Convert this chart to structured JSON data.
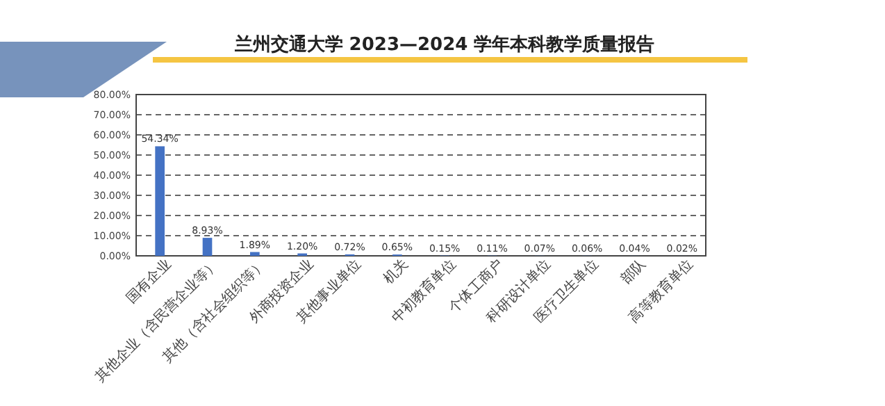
{
  "chart_data": {
    "type": "bar",
    "title": "兰州交通大学 2023—2024 学年本科教学质量报告",
    "categories": [
      "国有企业",
      "其他企业（含民营企业等）",
      "其他（含社会组织等）",
      "外商投资企业",
      "其他事业单位",
      "机关",
      "中初教育单位",
      "个体工商户",
      "科研设计单位",
      "医疗卫生单位",
      "部队",
      "高等教育单位"
    ],
    "values": [
      54.34,
      8.93,
      1.89,
      1.2,
      0.72,
      0.65,
      0.15,
      0.11,
      0.07,
      0.06,
      0.04,
      0.02
    ],
    "value_labels": [
      "54.34%",
      "8.93%",
      "1.89%",
      "1.20%",
      "0.72%",
      "0.65%",
      "0.15%",
      "0.11%",
      "0.07%",
      "0.06%",
      "0.04%",
      "0.02%"
    ],
    "color": "#4472c4",
    "ylim": [
      0,
      80
    ],
    "yticks": [
      {
        "value": 0,
        "label": "0.00%"
      },
      {
        "value": 10,
        "label": "10.00%"
      },
      {
        "value": 20,
        "label": "20.00%"
      },
      {
        "value": 30,
        "label": "30.00%"
      },
      {
        "value": 40,
        "label": "40.00%"
      },
      {
        "value": 50,
        "label": "50.00%"
      },
      {
        "value": 60,
        "label": "60.00%"
      },
      {
        "value": 70,
        "label": "70.00%"
      },
      {
        "value": 80,
        "label": "80.00%"
      }
    ],
    "grid": "y"
  }
}
